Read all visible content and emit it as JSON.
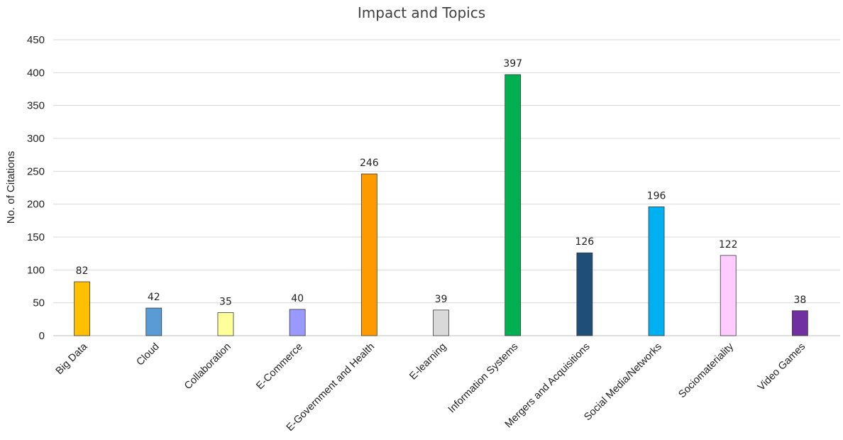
{
  "chart_data": {
    "type": "bar",
    "title": "Impact and Topics",
    "xlabel": "",
    "ylabel": "No. of Citations",
    "ylim": [
      0,
      450
    ],
    "yticks": [
      0,
      50,
      100,
      150,
      200,
      250,
      300,
      350,
      400,
      450
    ],
    "grid": true,
    "legend": "none",
    "categories": [
      "Big Data",
      "Cloud",
      "Collaboration",
      "E-Commerce",
      "E-Government and Health",
      "E-learning",
      "Information Systems",
      "Mergers and Acquisitions",
      "Social Media/Networks",
      "Sociomateriality",
      "Video Games"
    ],
    "values": [
      82,
      42,
      35,
      40,
      246,
      39,
      397,
      126,
      196,
      122,
      38
    ],
    "colors": [
      "#FFC000",
      "#5B9BD5",
      "#FFFF99",
      "#9999FF",
      "#FF9900",
      "#D9D9D9",
      "#00B050",
      "#1F4E79",
      "#00B0F0",
      "#FFCCFF",
      "#7030A0"
    ]
  }
}
